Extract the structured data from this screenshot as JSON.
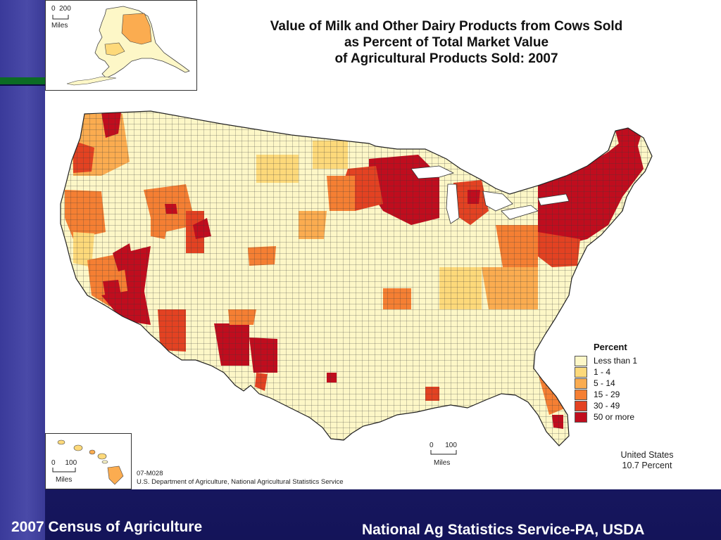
{
  "map": {
    "title_lines": [
      "Value of Milk and Other Dairy Products from Cows Sold",
      "as Percent of Total Market Value",
      "of Agricultural Products Sold:  2007"
    ],
    "legend": {
      "title": "Percent",
      "classes": [
        {
          "label": "Less than 1",
          "color": "#fdf7c7"
        },
        {
          "label": "1 - 4",
          "color": "#fdd97a"
        },
        {
          "label": "5 - 14",
          "color": "#fbac50"
        },
        {
          "label": "15 - 29",
          "color": "#f57f33"
        },
        {
          "label": "30 - 49",
          "color": "#e34222"
        },
        {
          "label": "50 or more",
          "color": "#c00d1e"
        }
      ]
    },
    "us_total": [
      "United States",
      "10.7 Percent"
    ],
    "map_code": "07-M028",
    "source": "U.S. Department of Agriculture, National Agricultural Statistics Service",
    "alaska_scale": {
      "start": "0",
      "end": "200",
      "unit": "Miles"
    },
    "hawaii_scale": {
      "start": "0",
      "end": "100",
      "unit": "Miles"
    },
    "main_scale": {
      "start": "0",
      "end": "100",
      "unit": "Miles"
    }
  },
  "footer": {
    "left": "2007 Census of Agriculture",
    "right": "National Ag Statistics Service-PA, USDA"
  }
}
